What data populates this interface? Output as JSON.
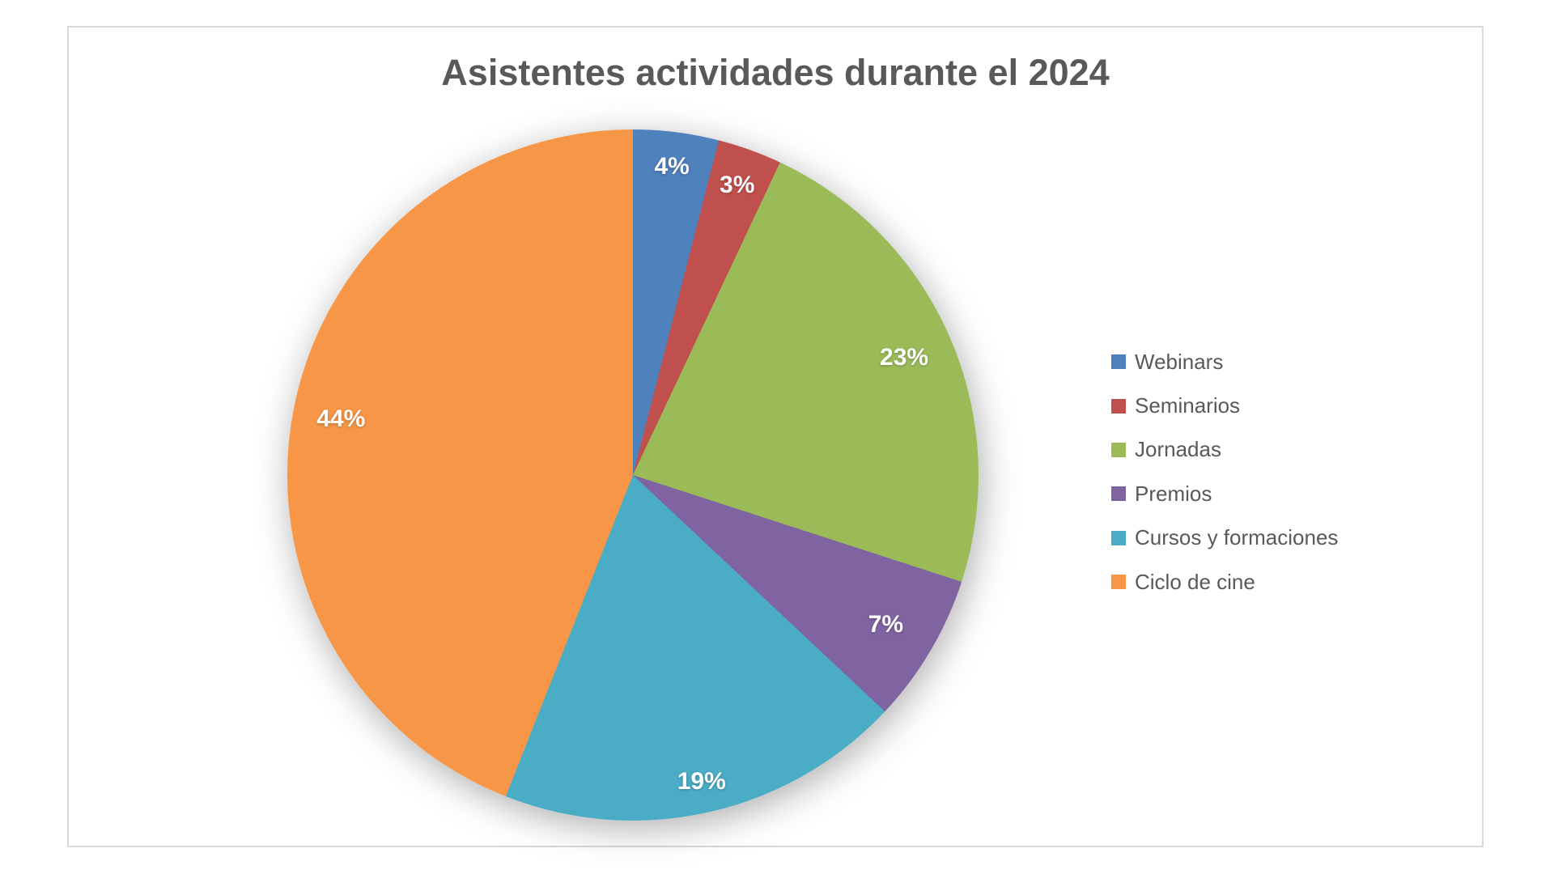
{
  "chart_data": {
    "type": "pie",
    "title": "Asistentes actividades durante el 2024",
    "categories": [
      "Webinars",
      "Seminarios",
      "Jornadas",
      "Premios",
      "Cursos y formaciones",
      "Ciclo de cine"
    ],
    "values": [
      4,
      3,
      23,
      7,
      19,
      44
    ],
    "unit": "%",
    "data_labels": [
      "4%",
      "3%",
      "23%",
      "7%",
      "19%",
      "44%"
    ],
    "colors": [
      "#4F81BD",
      "#C0504D",
      "#9BBB59",
      "#8064A2",
      "#4BACC6",
      "#F79646"
    ],
    "legend_position": "right",
    "start_angle_deg": 0,
    "direction": "clockwise",
    "grid": false
  }
}
